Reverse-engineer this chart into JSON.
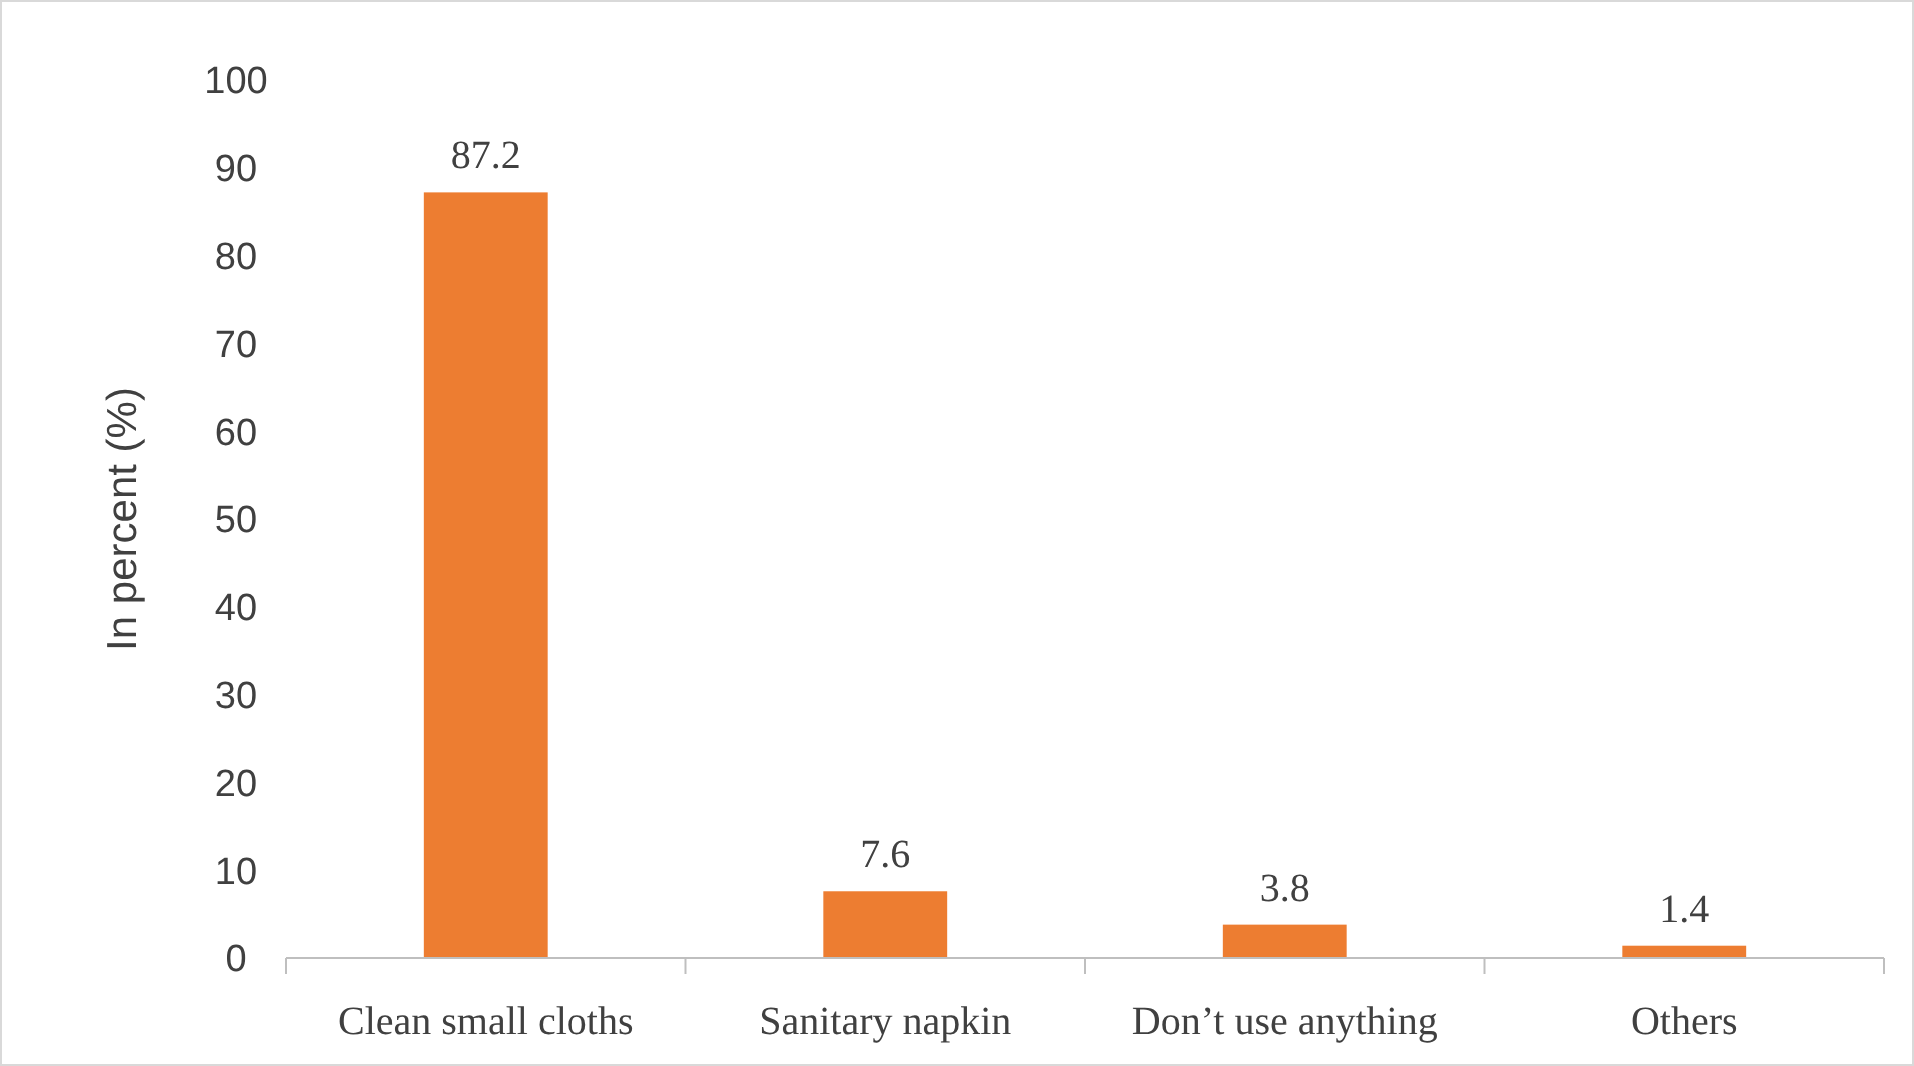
{
  "chart_data": {
    "type": "bar",
    "categories": [
      "Clean small cloths",
      "Sanitary napkin",
      "Don’t use anything",
      "Others"
    ],
    "values": [
      87.2,
      7.6,
      3.8,
      1.4
    ],
    "color": "#ed7d31",
    "ylabel": "In percent (%)",
    "ylim": [
      0,
      100
    ],
    "yticks": [
      0,
      10,
      20,
      30,
      40,
      50,
      60,
      70,
      80,
      90,
      100
    ],
    "grid": false,
    "data_labels": true
  }
}
